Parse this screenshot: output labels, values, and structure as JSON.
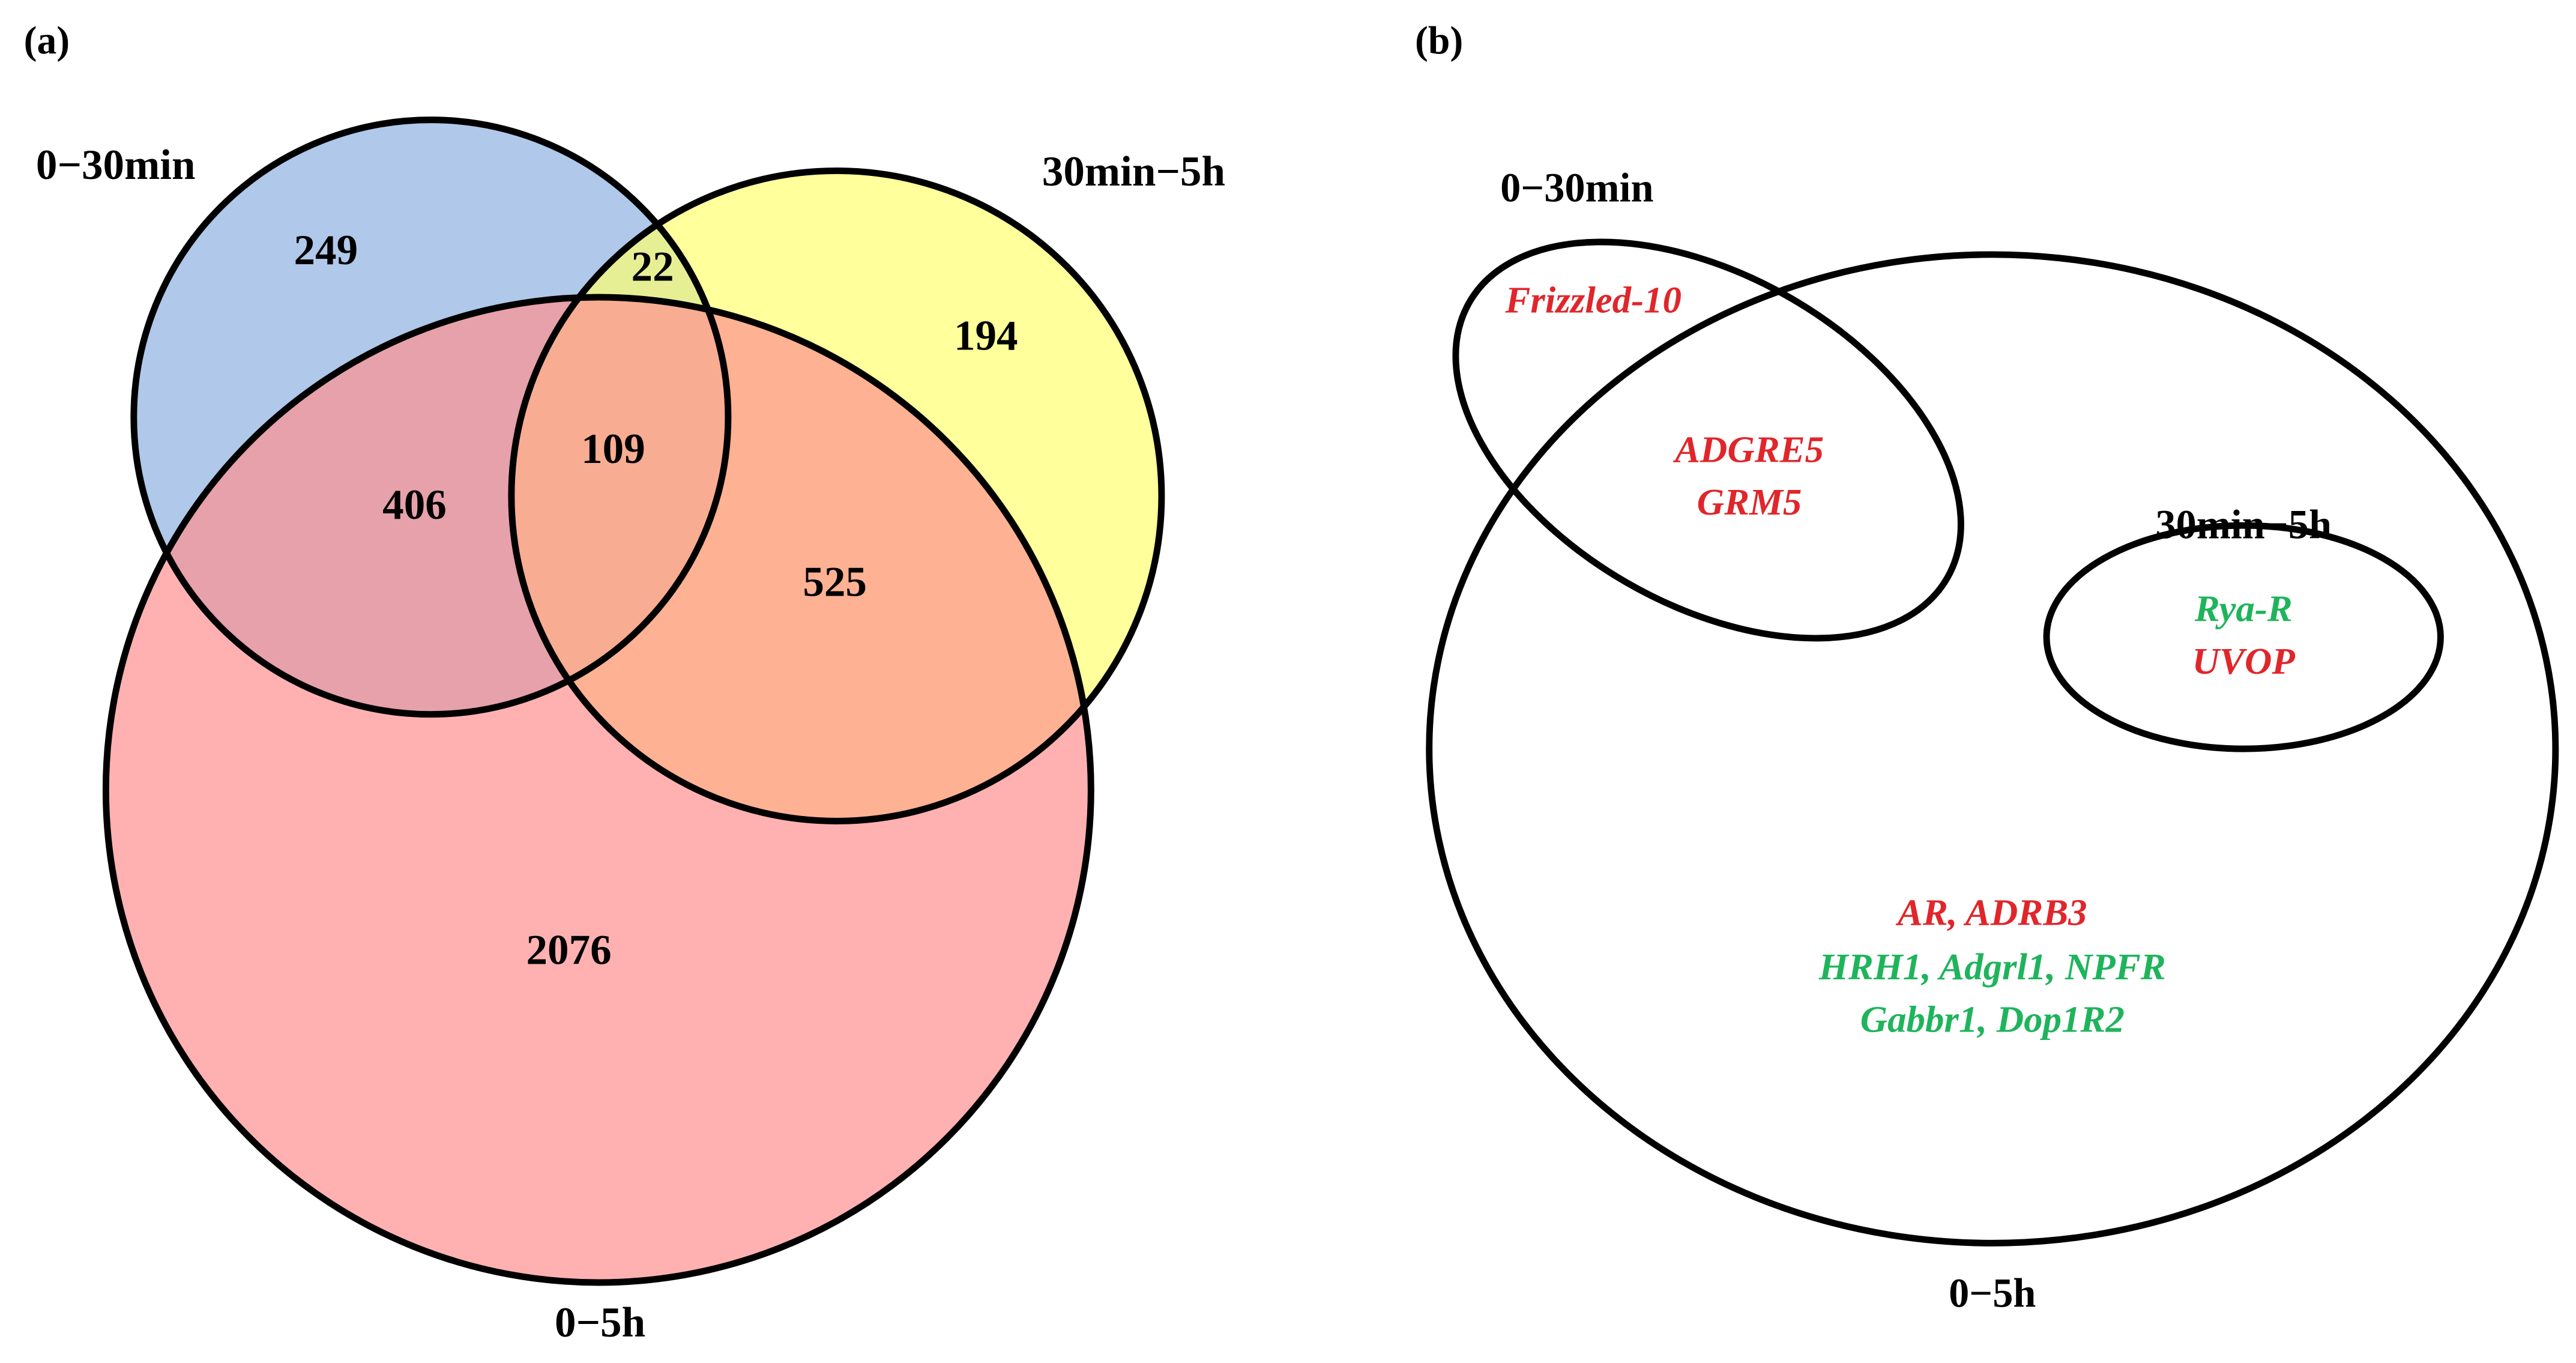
{
  "panels": [
    {
      "label": "(a)",
      "sets": [
        {
          "label": "0−30min",
          "color": "#8fb0e0"
        },
        {
          "label": "30min−5h",
          "color": "#ffff70"
        },
        {
          "label": "0−5h",
          "color": "#ff9090"
        }
      ],
      "regions": [
        249,
        22,
        194,
        109,
        406,
        525,
        2076
      ]
    },
    {
      "label": "(b)",
      "sets": [
        {
          "label": "0−30min"
        },
        {
          "label": "30min−5h"
        },
        {
          "label": "0−5h"
        }
      ],
      "genes": [
        [
          {
            "text": "Frizzled-10",
            "color": "#e0262b"
          }
        ],
        [
          {
            "text": "ADGRE5",
            "color": "#e0262b"
          }
        ],
        [
          {
            "text": "GRM5",
            "color": "#e0262b"
          }
        ],
        [
          {
            "text": "Rya-R",
            "color": "#1fb45c"
          }
        ],
        [
          {
            "text": "UVOP",
            "color": "#e0262b"
          }
        ],
        [
          {
            "text": "AR, ADRB3",
            "color": "#e0262b"
          }
        ],
        [
          {
            "text": "HRH1, Adgrl1, NPFR",
            "color": "#1fb45c"
          }
        ],
        [
          {
            "text": "Gabbr1, Dop1R2",
            "color": "#1fb45c"
          }
        ]
      ]
    }
  ]
}
